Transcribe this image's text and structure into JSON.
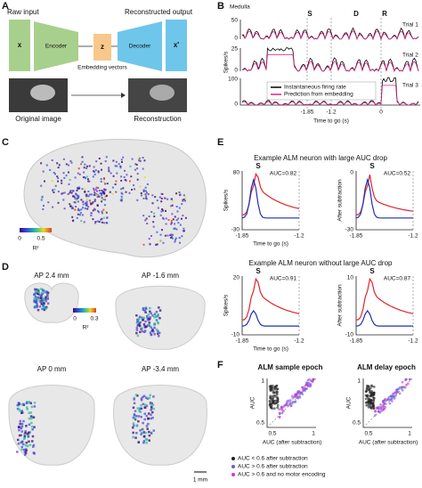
{
  "a": {
    "label": "A",
    "raw_input": "Raw input",
    "reconstructed_output": "Reconstructed output",
    "x": "x",
    "encoder": "Encoder",
    "z": "z",
    "decoder": "Decoder",
    "x_prime": "x'",
    "embedding_vectors": "Embedding vectors",
    "original_image": "Original image",
    "reconstruction": "Reconstruction"
  },
  "b": {
    "label": "B",
    "region": "Medulla",
    "epoch_s": "S",
    "epoch_d": "D",
    "epoch_r": "R",
    "trial1": "Trial 1",
    "trial2": "Trial 2",
    "trial3": "Trial 3",
    "ylabel": "Spikes/s",
    "ticks1": [
      "50",
      "0"
    ],
    "ticks2": [
      "25",
      "0"
    ],
    "ticks3": [
      "100",
      "0"
    ],
    "legend": [
      "Instantaneous firing rate",
      "Prediction from embedding"
    ],
    "xticks": [
      "-1.85",
      "-1.2",
      "0"
    ],
    "xlabel": "Time to go (s)"
  },
  "c": {
    "label": "C",
    "colorbar": [
      "0",
      "0.5"
    ],
    "colorbar_label": "R²"
  },
  "d": {
    "label": "D",
    "slices": [
      "AP 2.4 mm",
      "AP -1.6 mm",
      "AP 0 mm",
      "AP -3.4 mm"
    ],
    "colorbar": [
      "0",
      "0.3"
    ],
    "colorbar_label": "R²",
    "scale": "1 mm"
  },
  "e": {
    "label": "E",
    "groups": [
      {
        "title": "Example ALM neuron with large AUC drop",
        "epoch": "S",
        "auc": [
          "AUC=0.82",
          "AUC=0.52"
        ],
        "yticks_left": [
          "80",
          "-30"
        ],
        "yticks_right": [
          "0",
          "-30"
        ]
      },
      {
        "title": "Example ALM neuron without large AUC drop",
        "epoch": "S",
        "auc": [
          "AUC=0.91",
          "AUC=0.87"
        ],
        "yticks_left": [
          "20",
          "-10"
        ],
        "yticks_right": [
          "10",
          "-10"
        ]
      }
    ],
    "ylabel_left": "Spikes/s",
    "ylabel_right": "After subtraction",
    "xticks": [
      "-1.85",
      "-1.2"
    ],
    "xlabel": "Time to go (s)"
  },
  "f": {
    "label": "F",
    "titles": [
      "ALM sample epoch",
      "ALM delay epoch"
    ],
    "ylabel": "AUC",
    "xlabel": "AUC (after subtraction)",
    "ticks": [
      "0.5",
      "1"
    ],
    "legend": [
      "AUC < 0.6 after subtraction",
      "AUC > 0.6 after subtraction",
      "AUC > 0.6 and no motor encoding"
    ]
  }
}
